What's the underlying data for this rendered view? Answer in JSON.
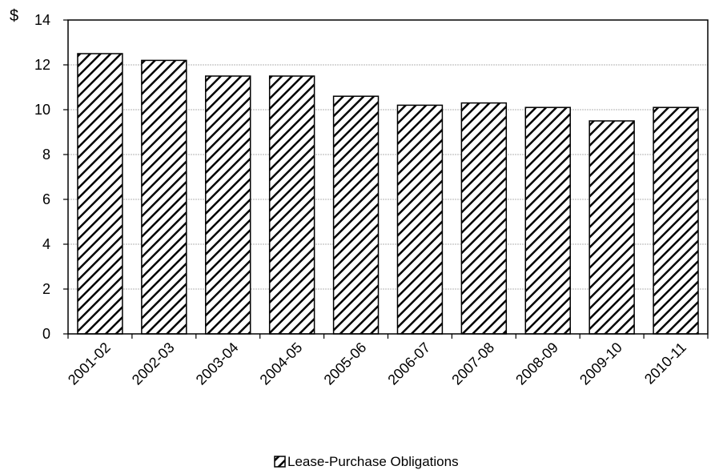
{
  "chart_data": {
    "type": "bar",
    "title": "",
    "xlabel": "",
    "ylabel": "",
    "y_unit": "$",
    "ylim": [
      0,
      14
    ],
    "y_ticks": [
      0,
      2,
      4,
      6,
      8,
      10,
      12,
      14
    ],
    "grid": "horizontal",
    "legend_position": "bottom",
    "categories": [
      "2001-02",
      "2002-03",
      "2003-04",
      "2004-05",
      "2005-06",
      "2006-07",
      "2007-08",
      "2008-09",
      "2009-10",
      "2010-11"
    ],
    "series": [
      {
        "name": "Lease-Purchase Obligations",
        "values": [
          12.5,
          12.2,
          11.5,
          11.5,
          10.6,
          10.2,
          10.3,
          10.1,
          9.5,
          10.1
        ],
        "pattern": "diagonal-hatch",
        "color": "#000000"
      }
    ]
  }
}
